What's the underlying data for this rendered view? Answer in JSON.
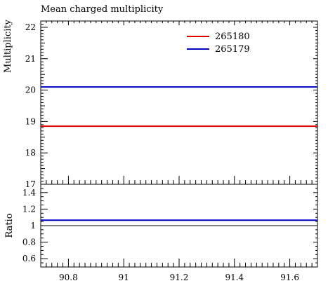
{
  "chart_data": [
    {
      "type": "line",
      "title": "Mean charged multiplicity",
      "ylabel": "Multiplicity",
      "xlim": [
        90.7,
        91.7
      ],
      "ylim": [
        17,
        22.2
      ],
      "yticks": [
        17,
        18,
        19,
        20,
        21,
        22
      ],
      "ytick_labels": [
        "17",
        "18",
        "19",
        "20",
        "21",
        "22"
      ],
      "legend_position": "top-right",
      "series": [
        {
          "name": "265180",
          "color": "#e00000",
          "x": [
            90.7,
            91.7
          ],
          "y": [
            18.85,
            18.85
          ]
        },
        {
          "name": "265179",
          "color": "#0000c0",
          "x": [
            90.7,
            91.7
          ],
          "y": [
            20.1,
            20.1
          ]
        }
      ]
    },
    {
      "type": "line",
      "title": "",
      "ylabel": "Ratio",
      "xlabel": "",
      "xlim": [
        90.7,
        91.7
      ],
      "ylim": [
        0.5,
        1.5
      ],
      "xticks": [
        90.8,
        91.0,
        91.2,
        91.4,
        91.6
      ],
      "xtick_labels": [
        "90.8",
        "91",
        "91.2",
        "91.4",
        "91.6"
      ],
      "yticks": [
        0.6,
        0.8,
        1.0,
        1.2,
        1.4
      ],
      "ytick_labels": [
        "0.6",
        "0.8",
        "1",
        "1.2",
        "1.4"
      ],
      "reference_line": 1.0,
      "series": [
        {
          "color": "#0000c0",
          "x": [
            90.7,
            91.7
          ],
          "y": [
            1.066,
            1.066
          ]
        }
      ]
    }
  ]
}
